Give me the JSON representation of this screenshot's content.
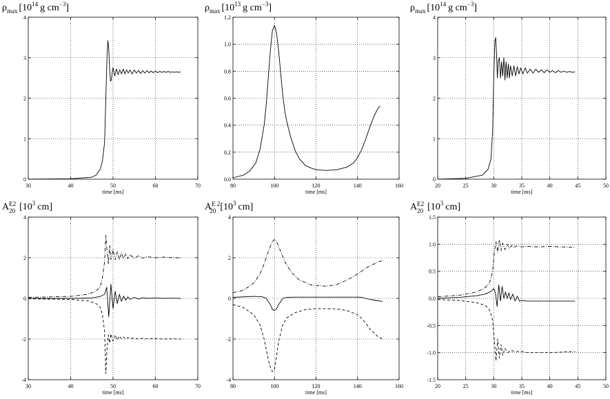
{
  "chart_data": [
    {
      "type": "line",
      "title_main": "ρ",
      "title_sub": "max",
      "title_unit_pre": "[10",
      "title_unit_exp": "14",
      "title_unit_mid": "g cm",
      "title_unit_exp2": "−3",
      "title_unit_post": "]",
      "xlabel": "time [ms]",
      "xlim": [
        30,
        70
      ],
      "ylim": [
        0,
        4
      ],
      "xticks": [
        30,
        40,
        50,
        60,
        70
      ],
      "yticks": [
        0,
        1,
        2,
        3,
        4
      ],
      "grid": true,
      "series": [
        {
          "style": "solid",
          "x": [
            30,
            40,
            45,
            46,
            47,
            47.5,
            48,
            48.2,
            48.4,
            48.6,
            48.8,
            49.0,
            49.2,
            49.4,
            49.6,
            49.8,
            50.0,
            50.4,
            50.8,
            51.2,
            51.6,
            52.0,
            52.4,
            52.8,
            53.2,
            53.6,
            54.0,
            54.5,
            55.0,
            55.5,
            56.0,
            56.5,
            57.0,
            57.5,
            58.0,
            58.5,
            59.0,
            59.5,
            60.0,
            60.5,
            61.0,
            61.5,
            62.0,
            62.5,
            63.0,
            63.5,
            64.0,
            64.5,
            65.0,
            65.5,
            66.0
          ],
          "y": [
            0.0,
            0.01,
            0.05,
            0.1,
            0.25,
            0.45,
            0.9,
            1.6,
            2.4,
            3.1,
            3.42,
            3.2,
            2.7,
            2.42,
            2.45,
            2.65,
            2.75,
            2.55,
            2.72,
            2.58,
            2.7,
            2.6,
            2.72,
            2.6,
            2.7,
            2.62,
            2.7,
            2.6,
            2.7,
            2.62,
            2.69,
            2.61,
            2.68,
            2.62,
            2.68,
            2.63,
            2.67,
            2.63,
            2.67,
            2.63,
            2.66,
            2.64,
            2.66,
            2.64,
            2.66,
            2.64,
            2.65,
            2.64,
            2.65,
            2.64,
            2.65
          ]
        }
      ]
    },
    {
      "type": "line",
      "title_main": "ρ",
      "title_sub": "max",
      "title_unit_pre": "[10",
      "title_unit_exp": "13",
      "title_unit_mid": "g cm",
      "title_unit_exp2": "−3",
      "title_unit_post": "]",
      "xlabel": "time [ms]",
      "xlim": [
        80,
        160
      ],
      "ylim": [
        0,
        1.2
      ],
      "xticks": [
        80,
        100,
        120,
        140,
        160
      ],
      "yticks": [
        0.0,
        0.2,
        0.4,
        0.6,
        0.8,
        1.0,
        1.2
      ],
      "grid": true,
      "series": [
        {
          "style": "solid",
          "x": [
            80,
            85,
            88,
            91,
            93,
            95,
            96,
            97,
            98,
            99,
            100,
            101,
            102,
            103,
            104,
            105,
            106,
            108,
            110,
            112,
            115,
            118,
            120,
            125,
            130,
            135,
            138,
            140,
            142,
            144,
            146,
            148,
            150,
            151
          ],
          "y": [
            0.01,
            0.03,
            0.06,
            0.12,
            0.22,
            0.4,
            0.55,
            0.75,
            0.95,
            1.1,
            1.14,
            1.08,
            0.95,
            0.78,
            0.62,
            0.5,
            0.42,
            0.3,
            0.21,
            0.15,
            0.1,
            0.08,
            0.07,
            0.065,
            0.07,
            0.09,
            0.12,
            0.16,
            0.22,
            0.3,
            0.39,
            0.47,
            0.53,
            0.54
          ]
        }
      ]
    },
    {
      "type": "line",
      "title_main": "ρ",
      "title_sub": "max",
      "title_unit_pre": "[10",
      "title_unit_exp": "14",
      "title_unit_mid": "g cm",
      "title_unit_exp2": "−3",
      "title_unit_post": "]",
      "xlabel": "time [ms]",
      "xlim": [
        20,
        50
      ],
      "ylim": [
        0,
        4
      ],
      "xticks": [
        20,
        25,
        30,
        35,
        40,
        45,
        50
      ],
      "yticks": [
        0,
        1,
        2,
        3,
        4
      ],
      "grid": true,
      "series": [
        {
          "style": "solid",
          "x": [
            20,
            25,
            28,
            29,
            29.5,
            29.8,
            30.0,
            30.2,
            30.35,
            30.5,
            30.65,
            30.8,
            31.0,
            31.2,
            31.4,
            31.6,
            31.8,
            32.0,
            32.2,
            32.4,
            32.6,
            32.8,
            33.0,
            33.3,
            33.6,
            33.9,
            34.2,
            34.5,
            34.8,
            35.2,
            35.6,
            36.0,
            36.5,
            37.0,
            37.5,
            38.0,
            38.5,
            39.0,
            39.5,
            40.0,
            40.5,
            41.0,
            41.5,
            42.0,
            42.5,
            43.0,
            43.5,
            44.0,
            44.5
          ],
          "y": [
            0.0,
            0.02,
            0.1,
            0.25,
            0.5,
            1.2,
            2.5,
            3.4,
            3.5,
            3.1,
            2.5,
            2.9,
            3.0,
            2.5,
            2.9,
            2.55,
            3.0,
            2.45,
            2.9,
            2.5,
            2.85,
            2.5,
            2.8,
            2.55,
            2.8,
            2.55,
            2.78,
            2.6,
            2.75,
            2.6,
            2.75,
            2.62,
            2.72,
            2.62,
            2.72,
            2.64,
            2.7,
            2.63,
            2.7,
            2.64,
            2.68,
            2.63,
            2.68,
            2.64,
            2.67,
            2.64,
            2.66,
            2.64,
            2.65
          ]
        }
      ]
    },
    {
      "type": "line",
      "title_main": "A",
      "title_sub": "20",
      "title_sup": "E2",
      "title_unit_pre": "[10",
      "title_unit_exp": "3",
      "title_unit_mid": "cm]",
      "xlabel": "time [ms]",
      "xlim": [
        30,
        70
      ],
      "ylim": [
        -4,
        4
      ],
      "xticks": [
        30,
        40,
        50,
        60,
        70
      ],
      "yticks": [
        -4,
        -2,
        0,
        2,
        4
      ],
      "grid": true,
      "series": [
        {
          "style": "solid",
          "x": [
            30,
            40,
            45,
            47,
            48,
            48.5,
            49.0,
            49.5,
            50.0,
            50.5,
            51.0,
            51.5,
            52.0,
            52.5,
            53.0,
            53.5,
            54.0,
            55.0,
            56.0,
            57.0,
            58.0,
            60.0,
            62.0,
            64.0,
            66.0
          ],
          "y": [
            0.0,
            0.0,
            0.02,
            0.1,
            0.2,
            0.55,
            -0.9,
            0.7,
            -0.5,
            0.35,
            -0.25,
            0.2,
            -0.15,
            0.12,
            -0.1,
            0.08,
            -0.05,
            0.05,
            -0.03,
            0.03,
            0.0,
            0.02,
            0.0,
            0.01,
            0.0
          ]
        },
        {
          "style": "dashdot",
          "x": [
            30,
            40,
            44,
            46,
            47,
            47.5,
            48.0,
            48.3,
            48.6,
            48.9,
            49.2,
            49.5,
            50.0,
            50.5,
            51.0,
            51.5,
            52.0,
            52.5,
            53.0,
            53.5,
            54.0,
            55.0,
            56.0,
            57.0,
            58.0,
            60.0,
            62.0,
            64.0,
            66.0
          ],
          "y": [
            0.05,
            0.1,
            0.2,
            0.35,
            0.6,
            1.0,
            1.8,
            3.1,
            2.3,
            1.7,
            2.6,
            1.9,
            2.4,
            1.9,
            2.3,
            1.9,
            2.25,
            1.95,
            2.2,
            1.95,
            2.15,
            1.97,
            2.1,
            1.98,
            2.05,
            2.0,
            2.03,
            2.0,
            2.0
          ]
        },
        {
          "style": "dashed",
          "x": [
            30,
            40,
            44,
            46,
            47,
            47.5,
            48.0,
            48.3,
            48.6,
            48.9,
            49.2,
            49.5,
            50.0,
            50.5,
            51.0,
            51.5,
            52.0,
            52.5,
            53.0,
            53.5,
            54.0,
            55.0,
            56.0,
            57.0,
            58.0,
            60.0,
            62.0,
            64.0,
            66.0
          ],
          "y": [
            -0.02,
            -0.05,
            -0.12,
            -0.25,
            -0.45,
            -0.8,
            -1.6,
            -3.7,
            -2.4,
            -1.8,
            -2.2,
            -1.75,
            -2.1,
            -1.8,
            -2.05,
            -1.85,
            -2.0,
            -1.9,
            -2.0,
            -1.92,
            -1.98,
            -1.95,
            -2.0,
            -1.96,
            -1.99,
            -1.98,
            -2.0,
            -1.99,
            -2.0
          ]
        }
      ]
    },
    {
      "type": "line",
      "title_main": "A",
      "title_sub": "20",
      "title_sup": "E 2",
      "title_unit_pre": "[10",
      "title_unit_exp": "3",
      "title_unit_mid": "cm]",
      "xlabel": "time [ms]",
      "xlim": [
        80,
        160
      ],
      "ylim": [
        -4,
        4
      ],
      "xticks": [
        80,
        100,
        120,
        140,
        160
      ],
      "yticks": [
        -4,
        -2,
        0,
        2,
        4
      ],
      "grid": true,
      "series": [
        {
          "style": "solid",
          "x": [
            80,
            90,
            94,
            96,
            98,
            99,
            100,
            101,
            102,
            104,
            106,
            110,
            120,
            130,
            140,
            142,
            146,
            150,
            152
          ],
          "y": [
            0.05,
            0.1,
            0.08,
            0.0,
            -0.3,
            -0.55,
            -0.6,
            -0.5,
            -0.3,
            0.0,
            0.05,
            0.06,
            0.06,
            0.06,
            0.06,
            0.05,
            -0.05,
            -0.12,
            -0.15
          ]
        },
        {
          "style": "dashdot",
          "x": [
            80,
            85,
            90,
            93,
            95,
            97,
            99,
            100,
            101,
            103,
            105,
            108,
            112,
            118,
            125,
            130,
            135,
            140,
            145,
            150,
            152
          ],
          "y": [
            0.28,
            0.4,
            0.75,
            1.2,
            1.7,
            2.3,
            2.8,
            2.9,
            2.8,
            2.3,
            1.8,
            1.3,
            0.9,
            0.65,
            0.6,
            0.68,
            0.9,
            1.2,
            1.55,
            1.8,
            1.85
          ]
        },
        {
          "style": "dashed",
          "x": [
            80,
            85,
            90,
            93,
            95,
            97,
            98,
            99,
            100,
            101,
            102,
            104,
            106,
            110,
            115,
            120,
            125,
            130,
            135,
            140,
            143,
            146,
            150,
            152
          ],
          "y": [
            -0.3,
            -0.45,
            -0.8,
            -1.3,
            -2.0,
            -3.0,
            -3.4,
            -3.6,
            -3.5,
            -2.8,
            -2.1,
            -1.3,
            -0.95,
            -0.7,
            -0.55,
            -0.5,
            -0.5,
            -0.52,
            -0.6,
            -0.8,
            -1.1,
            -1.5,
            -1.9,
            -2.0
          ]
        }
      ]
    },
    {
      "type": "line",
      "title_main": "A",
      "title_sub": "20",
      "title_sup": "E2",
      "title_unit_pre": "[10",
      "title_unit_exp": "3",
      "title_unit_mid": "cm]",
      "xlabel": "time [ms]",
      "xlim": [
        20,
        50
      ],
      "ylim": [
        -1.5,
        1.5
      ],
      "xticks": [
        20,
        25,
        30,
        35,
        40,
        45,
        50
      ],
      "yticks": [
        -1.5,
        -1.0,
        -0.5,
        0.0,
        0.5,
        1.0,
        1.5
      ],
      "grid": true,
      "series": [
        {
          "style": "solid",
          "x": [
            20,
            24,
            27,
            28.5,
            29.5,
            30.0,
            30.3,
            30.6,
            30.9,
            31.2,
            31.5,
            31.8,
            32.1,
            32.4,
            32.7,
            33.0,
            33.4,
            33.8,
            34.2,
            34.6,
            35.0,
            36,
            38,
            40,
            42,
            44.5
          ],
          "y": [
            0.0,
            0.02,
            0.05,
            0.08,
            0.13,
            0.18,
            0.1,
            -0.15,
            0.25,
            -0.05,
            0.22,
            0.0,
            0.12,
            0.0,
            0.1,
            -0.02,
            0.08,
            -0.05,
            0.04,
            -0.05,
            -0.04,
            -0.05,
            -0.05,
            -0.05,
            -0.05,
            -0.05
          ]
        },
        {
          "style": "dashdot",
          "x": [
            20,
            24,
            27,
            28.5,
            29.3,
            29.8,
            30.1,
            30.4,
            30.7,
            31.0,
            31.3,
            31.6,
            32.0,
            32.4,
            32.8,
            33.2,
            33.6,
            34.0,
            35.0,
            36,
            38,
            40,
            42,
            44.5
          ],
          "y": [
            0.03,
            0.06,
            0.12,
            0.2,
            0.3,
            0.5,
            0.85,
            1.05,
            0.85,
            1.08,
            0.88,
            1.02,
            0.9,
            1.0,
            0.92,
            0.98,
            0.93,
            0.97,
            0.95,
            0.96,
            0.95,
            0.96,
            0.95,
            0.94
          ]
        },
        {
          "style": "dashed",
          "x": [
            20,
            24,
            27,
            28.5,
            29.3,
            29.8,
            30.1,
            30.4,
            30.7,
            31.0,
            31.3,
            31.6,
            32.0,
            32.5,
            33.0,
            34.0,
            35.0,
            36,
            38,
            40,
            42,
            44.5
          ],
          "y": [
            -0.02,
            -0.04,
            -0.08,
            -0.13,
            -0.22,
            -0.4,
            -0.75,
            -1.15,
            -0.75,
            -1.1,
            -0.85,
            -1.05,
            -0.92,
            -1.0,
            -0.96,
            -0.98,
            -0.98,
            -1.0,
            -1.0,
            -1.0,
            -0.99,
            -0.98
          ]
        }
      ]
    }
  ]
}
